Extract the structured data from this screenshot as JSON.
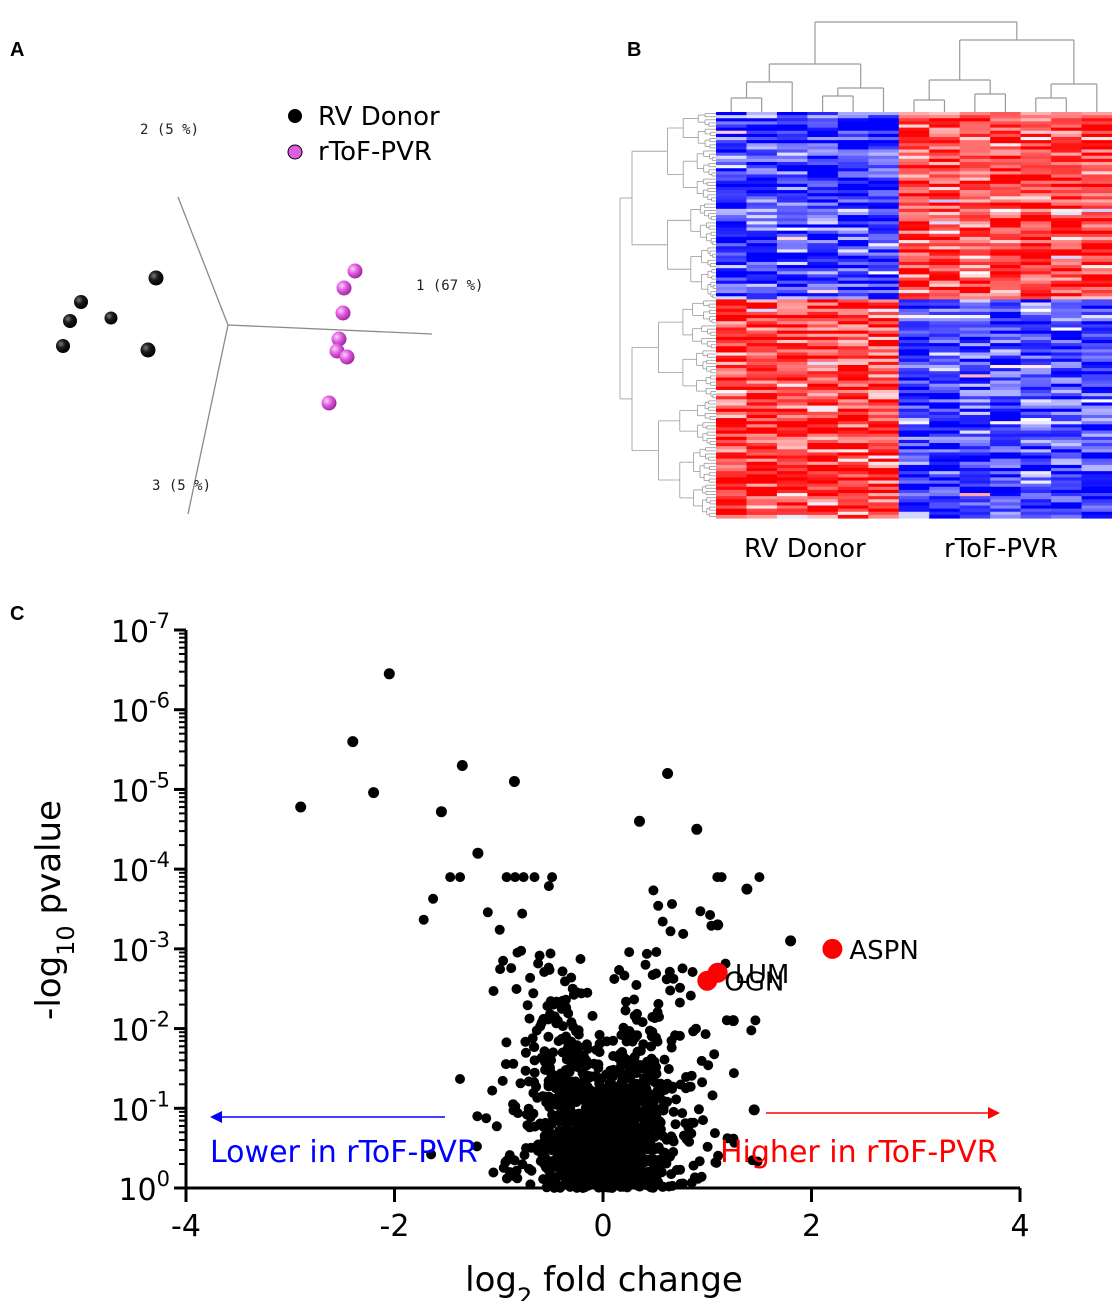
{
  "panels": {
    "a": "A",
    "b": "B",
    "c": "C"
  },
  "pca": {
    "axis1_label": "1 (67 %)",
    "axis2_label": "2 (5 %)",
    "axis3_label": "3 (5 %)",
    "legend": [
      {
        "label": "RV Donor",
        "color": "#000000"
      },
      {
        "label": "rToF-PVR",
        "color": "#e05ce0"
      }
    ]
  },
  "heatmap": {
    "group_labels": [
      "RV Donor",
      "rToF-PVR"
    ],
    "colors": {
      "high": "#ff0000",
      "low": "#0000ff",
      "mid": "#ffffff"
    }
  },
  "chart_data": {
    "type": "scatter",
    "xlabel_base": "log",
    "xlabel_sub": "2",
    "xlabel_rest": " fold change",
    "ylabel_pre": "-log",
    "ylabel_sub": "10",
    "ylabel_rest": " pvalue",
    "xlim": [
      -4,
      4
    ],
    "xticks": [
      "-4",
      "-2",
      "0",
      "2",
      "4"
    ],
    "y_scale": "log",
    "ylim_pvalue": [
      1,
      1e-07
    ],
    "yticks": [
      {
        "base": "10",
        "exp": "0"
      },
      {
        "base": "10",
        "exp": "-1"
      },
      {
        "base": "10",
        "exp": "-2"
      },
      {
        "base": "10",
        "exp": "-3"
      },
      {
        "base": "10",
        "exp": "-4"
      },
      {
        "base": "10",
        "exp": "-5"
      },
      {
        "base": "10",
        "exp": "-6"
      },
      {
        "base": "10",
        "exp": "-7"
      }
    ],
    "highlighted": [
      {
        "gene": "LUM",
        "x": 1.1,
        "neglog10p": 2.7,
        "color": "#ff0000"
      },
      {
        "gene": "ASPN",
        "x": 2.2,
        "neglog10p": 3.0,
        "color": "#ff0000"
      },
      {
        "gene": "OGN",
        "x": 1.0,
        "neglog10p": 2.6,
        "color": "#ff0000"
      }
    ],
    "outliers": [
      {
        "x": -2.05,
        "neglog10p": 6.45
      },
      {
        "x": -2.4,
        "neglog10p": 5.6
      },
      {
        "x": -2.2,
        "neglog10p": 4.96
      },
      {
        "x": -2.9,
        "neglog10p": 4.78
      },
      {
        "x": -1.35,
        "neglog10p": 5.3
      },
      {
        "x": -0.85,
        "neglog10p": 5.1
      },
      {
        "x": 0.62,
        "neglog10p": 5.2
      },
      {
        "x": 1.38,
        "neglog10p": 3.75
      },
      {
        "x": 1.8,
        "neglog10p": 3.1
      },
      {
        "x": 1.45,
        "neglog10p": 0.98
      },
      {
        "x": -1.55,
        "neglog10p": 4.72
      },
      {
        "x": 0.35,
        "neglog10p": 4.6
      },
      {
        "x": 0.9,
        "neglog10p": 4.5
      },
      {
        "x": -1.2,
        "neglog10p": 4.2
      },
      {
        "x": 1.1,
        "neglog10p": 3.3
      },
      {
        "x": 1.25,
        "neglog10p": 2.1
      }
    ],
    "cloud_points": 1500,
    "point_color": "#000000",
    "direction_left": {
      "label": "Lower in rToF-PVR",
      "color": "#0000ff"
    },
    "direction_right": {
      "label": "Higher in rToF-PVR",
      "color": "#ff0000"
    }
  }
}
